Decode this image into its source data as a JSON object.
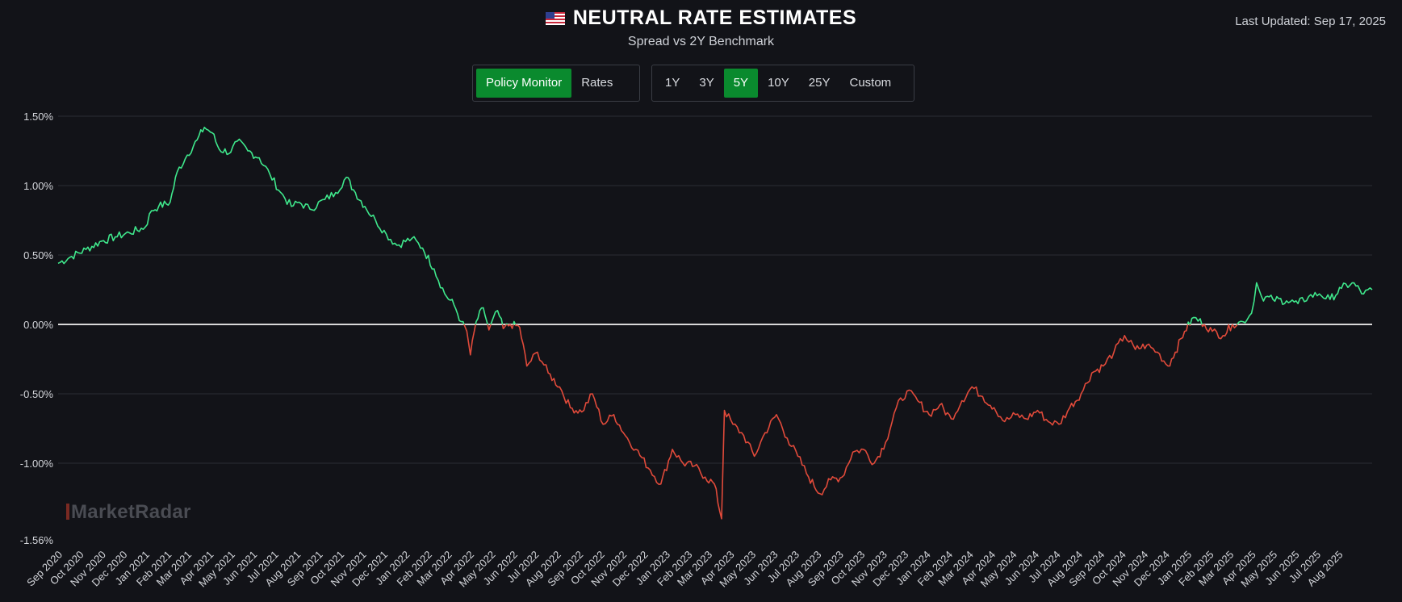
{
  "header": {
    "title": "NEUTRAL RATE ESTIMATES",
    "subtitle": "Spread vs 2Y Benchmark",
    "last_updated": "Last Updated: Sep 17, 2025",
    "flag_icon": "us-flag-icon"
  },
  "view_toggle": {
    "options": [
      "Policy Monitor",
      "Rates"
    ],
    "active": "Policy Monitor"
  },
  "range_toggle": {
    "options": [
      "1Y",
      "3Y",
      "5Y",
      "10Y",
      "25Y",
      "Custom"
    ],
    "active": "5Y"
  },
  "watermark": "MarketRadar",
  "colors": {
    "background": "#121318",
    "positive": "#3fe88c",
    "negative": "#e04a3a",
    "zero_line": "#d8d8d8",
    "grid": "#2a2c33",
    "accent": "#0a8a2e"
  },
  "chart_data": {
    "type": "line",
    "title": "NEUTRAL RATE ESTIMATES",
    "subtitle": "Spread vs 2Y Benchmark",
    "x_start": "2020-09-01",
    "x_end": "2025-09-17",
    "ylim": [
      -1.56,
      1.5
    ],
    "y_ticks": [
      {
        "value": 1.5,
        "label": "1.50%"
      },
      {
        "value": 1.0,
        "label": "1.00%"
      },
      {
        "value": 0.5,
        "label": "0.50%"
      },
      {
        "value": 0.0,
        "label": "0.00%"
      },
      {
        "value": -0.5,
        "label": "-0.50%"
      },
      {
        "value": -1.0,
        "label": "-1.00%"
      },
      {
        "value": -1.56,
        "label": "-1.56%"
      }
    ],
    "x_tick_labels": [
      "Sep 2020",
      "Oct 2020",
      "Nov 2020",
      "Dec 2020",
      "Jan 2021",
      "Feb 2021",
      "Mar 2021",
      "Apr 2021",
      "May 2021",
      "Jun 2021",
      "Jul 2021",
      "Aug 2021",
      "Sep 2021",
      "Oct 2021",
      "Nov 2021",
      "Dec 2021",
      "Jan 2022",
      "Feb 2022",
      "Mar 2022",
      "Apr 2022",
      "May 2022",
      "Jun 2022",
      "Jul 2022",
      "Aug 2022",
      "Sep 2022",
      "Oct 2022",
      "Nov 2022",
      "Dec 2022",
      "Jan 2023",
      "Feb 2023",
      "Mar 2023",
      "Apr 2023",
      "May 2023",
      "Jun 2023",
      "Jul 2023",
      "Aug 2023",
      "Sep 2023",
      "Oct 2023",
      "Nov 2023",
      "Dec 2023",
      "Jan 2024",
      "Feb 2024",
      "Mar 2024",
      "Apr 2024",
      "May 2024",
      "Jun 2024",
      "Jul 2024",
      "Aug 2024",
      "Sep 2024",
      "Oct 2024",
      "Nov 2024",
      "Dec 2024",
      "Jan 2025",
      "Feb 2025",
      "Mar 2025",
      "Apr 2025",
      "May 2025",
      "Jun 2025",
      "Jul 2025",
      "Aug 2025"
    ],
    "series": [
      {
        "name": "Spread vs 2Y Benchmark (%)",
        "points": [
          [
            "2020-09-01",
            0.44
          ],
          [
            "2020-09-20",
            0.49
          ],
          [
            "2020-10-10",
            0.54
          ],
          [
            "2020-11-01",
            0.6
          ],
          [
            "2020-11-20",
            0.63
          ],
          [
            "2020-12-10",
            0.66
          ],
          [
            "2021-01-01",
            0.7
          ],
          [
            "2021-01-10",
            0.82
          ],
          [
            "2021-01-20",
            0.85
          ],
          [
            "2021-02-05",
            0.88
          ],
          [
            "2021-02-15",
            1.1
          ],
          [
            "2021-03-01",
            1.22
          ],
          [
            "2021-03-15",
            1.33
          ],
          [
            "2021-03-25",
            1.42
          ],
          [
            "2021-04-05",
            1.38
          ],
          [
            "2021-04-15",
            1.26
          ],
          [
            "2021-05-01",
            1.24
          ],
          [
            "2021-05-10",
            1.32
          ],
          [
            "2021-05-25",
            1.25
          ],
          [
            "2021-06-10",
            1.2
          ],
          [
            "2021-06-25",
            1.08
          ],
          [
            "2021-07-10",
            0.95
          ],
          [
            "2021-07-25",
            0.85
          ],
          [
            "2021-08-05",
            0.88
          ],
          [
            "2021-08-20",
            0.83
          ],
          [
            "2021-09-10",
            0.9
          ],
          [
            "2021-09-25",
            0.95
          ],
          [
            "2021-10-10",
            1.06
          ],
          [
            "2021-10-20",
            0.97
          ],
          [
            "2021-11-05",
            0.85
          ],
          [
            "2021-11-20",
            0.75
          ],
          [
            "2021-12-05",
            0.65
          ],
          [
            "2021-12-20",
            0.57
          ],
          [
            "2022-01-10",
            0.62
          ],
          [
            "2022-01-25",
            0.55
          ],
          [
            "2022-02-10",
            0.4
          ],
          [
            "2022-02-25",
            0.22
          ],
          [
            "2022-03-10",
            0.14
          ],
          [
            "2022-03-20",
            0.02
          ],
          [
            "2022-03-28",
            -0.05
          ],
          [
            "2022-04-02",
            -0.22
          ],
          [
            "2022-04-10",
            0.02
          ],
          [
            "2022-04-20",
            0.12
          ],
          [
            "2022-04-28",
            -0.04
          ],
          [
            "2022-05-10",
            0.1
          ],
          [
            "2022-05-18",
            -0.03
          ],
          [
            "2022-05-28",
            0.0
          ],
          [
            "2022-06-10",
            -0.02
          ],
          [
            "2022-06-20",
            -0.3
          ],
          [
            "2022-07-05",
            -0.2
          ],
          [
            "2022-07-20",
            -0.35
          ],
          [
            "2022-08-05",
            -0.45
          ],
          [
            "2022-08-20",
            -0.6
          ],
          [
            "2022-09-05",
            -0.63
          ],
          [
            "2022-09-20",
            -0.5
          ],
          [
            "2022-10-05",
            -0.72
          ],
          [
            "2022-10-20",
            -0.65
          ],
          [
            "2022-11-05",
            -0.8
          ],
          [
            "2022-11-20",
            -0.9
          ],
          [
            "2022-12-10",
            -1.05
          ],
          [
            "2022-12-25",
            -1.15
          ],
          [
            "2023-01-10",
            -0.9
          ],
          [
            "2023-01-25",
            -1.0
          ],
          [
            "2023-02-10",
            -1.02
          ],
          [
            "2023-02-25",
            -1.1
          ],
          [
            "2023-03-10",
            -1.15
          ],
          [
            "2023-03-20",
            -1.4
          ],
          [
            "2023-03-24",
            -0.62
          ],
          [
            "2023-04-05",
            -0.72
          ],
          [
            "2023-04-20",
            -0.8
          ],
          [
            "2023-05-05",
            -0.95
          ],
          [
            "2023-05-20",
            -0.78
          ],
          [
            "2023-06-05",
            -0.65
          ],
          [
            "2023-06-20",
            -0.82
          ],
          [
            "2023-07-05",
            -0.95
          ],
          [
            "2023-07-20",
            -1.1
          ],
          [
            "2023-08-05",
            -1.22
          ],
          [
            "2023-08-20",
            -1.12
          ],
          [
            "2023-09-05",
            -1.1
          ],
          [
            "2023-09-20",
            -0.92
          ],
          [
            "2023-10-05",
            -0.9
          ],
          [
            "2023-10-20",
            -1.0
          ],
          [
            "2023-11-05",
            -0.85
          ],
          [
            "2023-11-20",
            -0.6
          ],
          [
            "2023-12-05",
            -0.48
          ],
          [
            "2023-12-20",
            -0.55
          ],
          [
            "2024-01-05",
            -0.65
          ],
          [
            "2024-01-20",
            -0.58
          ],
          [
            "2024-02-05",
            -0.68
          ],
          [
            "2024-02-20",
            -0.55
          ],
          [
            "2024-03-05",
            -0.45
          ],
          [
            "2024-03-20",
            -0.52
          ],
          [
            "2024-04-05",
            -0.6
          ],
          [
            "2024-04-20",
            -0.7
          ],
          [
            "2024-05-05",
            -0.65
          ],
          [
            "2024-05-20",
            -0.68
          ],
          [
            "2024-06-05",
            -0.62
          ],
          [
            "2024-06-20",
            -0.7
          ],
          [
            "2024-07-05",
            -0.72
          ],
          [
            "2024-07-20",
            -0.6
          ],
          [
            "2024-08-05",
            -0.5
          ],
          [
            "2024-08-20",
            -0.35
          ],
          [
            "2024-09-05",
            -0.3
          ],
          [
            "2024-09-20",
            -0.2
          ],
          [
            "2024-10-05",
            -0.08
          ],
          [
            "2024-10-20",
            -0.18
          ],
          [
            "2024-11-05",
            -0.15
          ],
          [
            "2024-11-20",
            -0.2
          ],
          [
            "2024-12-05",
            -0.3
          ],
          [
            "2024-12-15",
            -0.2
          ],
          [
            "2024-12-28",
            -0.05
          ],
          [
            "2025-01-10",
            0.05
          ],
          [
            "2025-01-25",
            0.0
          ],
          [
            "2025-02-05",
            -0.05
          ],
          [
            "2025-02-20",
            -0.08
          ],
          [
            "2025-03-05",
            0.0
          ],
          [
            "2025-03-20",
            0.02
          ],
          [
            "2025-04-01",
            0.08
          ],
          [
            "2025-04-08",
            0.3
          ],
          [
            "2025-04-15",
            0.2
          ],
          [
            "2025-05-01",
            0.18
          ],
          [
            "2025-05-20",
            0.17
          ],
          [
            "2025-06-05",
            0.15
          ],
          [
            "2025-06-20",
            0.2
          ],
          [
            "2025-07-05",
            0.22
          ],
          [
            "2025-07-20",
            0.18
          ],
          [
            "2025-08-05",
            0.26
          ],
          [
            "2025-08-20",
            0.3
          ],
          [
            "2025-09-05",
            0.22
          ],
          [
            "2025-09-17",
            0.25
          ]
        ]
      }
    ]
  }
}
